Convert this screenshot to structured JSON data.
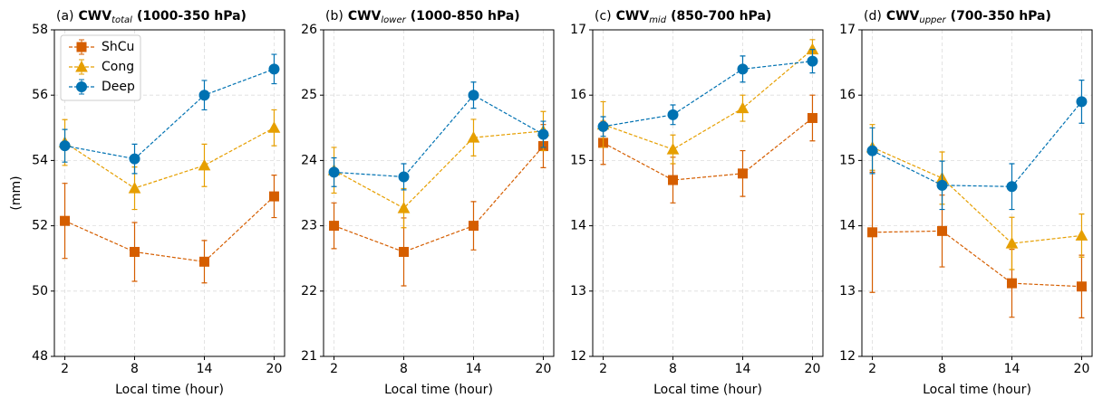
{
  "chart_data": [
    {
      "type": "line",
      "panel_label": "(a)",
      "title": "CWV",
      "title_subscript": "total",
      "title_suffix": "(1000-350 hPa)",
      "xlabel": "Local time (hour)",
      "ylabel": "(mm)",
      "x": [
        2,
        8,
        14,
        20
      ],
      "xlim": [
        1.1,
        20.9
      ],
      "xticks": [
        2,
        8,
        14,
        20
      ],
      "ylim": [
        48,
        58
      ],
      "yticks": [
        48,
        50,
        52,
        54,
        56,
        58
      ],
      "grid": true,
      "legend": "upper left",
      "series": [
        {
          "name": "ShCu",
          "color": "#d55e00",
          "marker": "square",
          "values": [
            52.15,
            51.2,
            50.9,
            52.9
          ],
          "errors": [
            1.15,
            0.9,
            0.65,
            0.65
          ]
        },
        {
          "name": "Cong",
          "color": "#e69f00",
          "marker": "triangle",
          "values": [
            54.55,
            53.15,
            53.85,
            55.0
          ],
          "errors": [
            0.7,
            0.65,
            0.65,
            0.55
          ]
        },
        {
          "name": "Deep",
          "color": "#0072b2",
          "marker": "circle",
          "values": [
            54.45,
            54.05,
            56.0,
            56.8
          ],
          "errors": [
            0.5,
            0.45,
            0.45,
            0.45
          ]
        }
      ]
    },
    {
      "type": "line",
      "panel_label": "(b)",
      "title": "CWV",
      "title_subscript": "lower",
      "title_suffix": "(1000-850 hPa)",
      "xlabel": "Local time (hour)",
      "x": [
        2,
        8,
        14,
        20
      ],
      "xlim": [
        1.1,
        20.9
      ],
      "xticks": [
        2,
        8,
        14,
        20
      ],
      "ylim": [
        21,
        26
      ],
      "yticks": [
        21,
        22,
        23,
        24,
        25,
        26
      ],
      "grid": true,
      "series": [
        {
          "color": "#d55e00",
          "marker": "square",
          "values": [
            23.0,
            22.6,
            23.0,
            24.22
          ],
          "errors": [
            0.35,
            0.52,
            0.37,
            0.33
          ]
        },
        {
          "color": "#e69f00",
          "marker": "triangle",
          "values": [
            23.85,
            23.27,
            24.35,
            24.45
          ],
          "errors": [
            0.35,
            0.3,
            0.28,
            0.3
          ]
        },
        {
          "color": "#0072b2",
          "marker": "circle",
          "values": [
            23.82,
            23.75,
            25.0,
            24.4
          ],
          "errors": [
            0.22,
            0.2,
            0.2,
            0.2
          ]
        }
      ]
    },
    {
      "type": "line",
      "panel_label": "(c)",
      "title": "CWV",
      "title_subscript": "mid",
      "title_suffix": "(850-700 hPa)",
      "xlabel": "Local time (hour)",
      "x": [
        2,
        8,
        14,
        20
      ],
      "xlim": [
        1.1,
        20.9
      ],
      "xticks": [
        2,
        8,
        14,
        20
      ],
      "ylim": [
        12,
        17
      ],
      "yticks": [
        12,
        13,
        14,
        15,
        16,
        17
      ],
      "grid": true,
      "series": [
        {
          "color": "#d55e00",
          "marker": "square",
          "values": [
            15.27,
            14.7,
            14.8,
            15.65
          ],
          "errors": [
            0.33,
            0.35,
            0.35,
            0.35
          ]
        },
        {
          "color": "#e69f00",
          "marker": "triangle",
          "values": [
            15.55,
            15.17,
            15.8,
            16.7
          ],
          "errors": [
            0.35,
            0.22,
            0.2,
            0.15
          ]
        },
        {
          "color": "#0072b2",
          "marker": "circle",
          "values": [
            15.52,
            15.7,
            16.4,
            16.52
          ],
          "errors": [
            0.15,
            0.15,
            0.2,
            0.18
          ]
        }
      ]
    },
    {
      "type": "line",
      "panel_label": "(d)",
      "title": "CWV",
      "title_subscript": "upper",
      "title_suffix": "(700-350 hPa)",
      "xlabel": "Local time (hour)",
      "x": [
        2,
        8,
        14,
        20
      ],
      "xlim": [
        1.1,
        20.9
      ],
      "xticks": [
        2,
        8,
        14,
        20
      ],
      "ylim": [
        12,
        17
      ],
      "yticks": [
        12,
        13,
        14,
        15,
        16,
        17
      ],
      "grid": true,
      "series": [
        {
          "color": "#d55e00",
          "marker": "square",
          "values": [
            13.9,
            13.92,
            13.12,
            13.07
          ],
          "errors": [
            0.92,
            0.55,
            0.52,
            0.48
          ]
        },
        {
          "color": "#e69f00",
          "marker": "triangle",
          "values": [
            15.2,
            14.73,
            13.73,
            13.85
          ],
          "errors": [
            0.35,
            0.4,
            0.4,
            0.33
          ]
        },
        {
          "color": "#0072b2",
          "marker": "circle",
          "values": [
            15.15,
            14.62,
            14.6,
            15.9
          ],
          "errors": [
            0.35,
            0.37,
            0.35,
            0.33
          ]
        }
      ]
    }
  ]
}
